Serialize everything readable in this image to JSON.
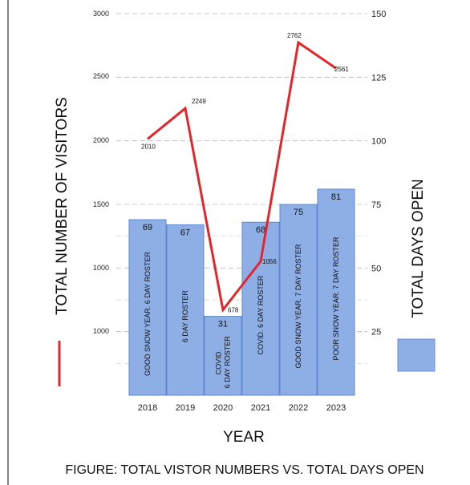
{
  "chart_data": {
    "type": "bar",
    "title": "",
    "caption": "FIGURE: TOTAL VISTOR NUMBERS VS. TOTAL DAYS OPEN",
    "xlabel": "YEAR",
    "ylabel_left": "TOTAL NUMBER OF VISITORS",
    "ylabel_right": "TOTAL DAYS OPEN",
    "categories": [
      "2018",
      "2019",
      "2020",
      "2021",
      "2022",
      "2023"
    ],
    "left_axis": {
      "tick_labels": [
        "1000",
        "1000",
        "1500",
        "2000",
        "2500",
        "3000"
      ]
    },
    "right_axis": {
      "ylim": [
        0,
        150
      ],
      "ticks": [
        25,
        50,
        75,
        100,
        125,
        150
      ],
      "tick_labels": [
        "25",
        "50",
        "75",
        "100",
        "125",
        "150"
      ]
    },
    "series": [
      {
        "kind": "bar",
        "axis": "right",
        "color": "#8eaee6",
        "values": [
          69,
          67,
          31,
          68,
          75,
          81
        ],
        "notes": [
          [
            "GOOD SNOW YEAR.  6 DAY ROSTER"
          ],
          [
            "6 DAY ROSTER"
          ],
          [
            "COVID.",
            "6 DAY ROSTER"
          ],
          [
            "COVID.  6 DAY ROSTER"
          ],
          [
            "GOOD SNOW YEAR.  7 DAY ROSTER"
          ],
          [
            "POOR SNOW YEAR.  7 DAY ROSTER"
          ]
        ]
      },
      {
        "kind": "line",
        "axis": "left",
        "color": "#e4262b",
        "values": [
          2010,
          2249,
          678,
          1056,
          2762,
          2561
        ],
        "value_labels": [
          "2010",
          "2249",
          "678",
          "1056",
          "2762",
          "2561"
        ]
      }
    ],
    "grid": true,
    "legend_position": "right"
  }
}
